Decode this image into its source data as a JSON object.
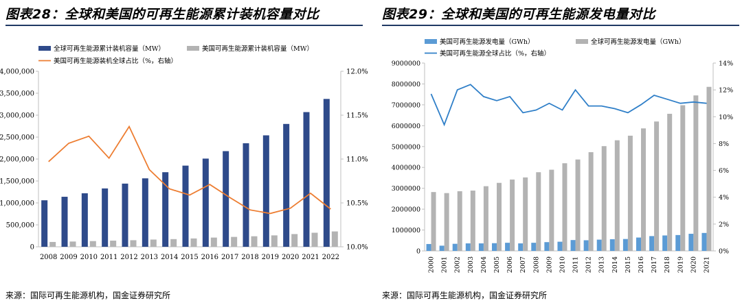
{
  "charts": [
    {
      "title": "图表28：全球和美国的可再生能源累计装机容量对比",
      "source": "来源：国际可再生能源机构，国金证券研究所"
    },
    {
      "title": "图表29：全球和美国的可再生能源发电量对比",
      "source": "来源：国际可再生能源机构，国金证券研究所"
    }
  ],
  "chart_data": [
    {
      "type": "bar",
      "categories": [
        "2008",
        "2009",
        "2010",
        "2011",
        "2012",
        "2013",
        "2014",
        "2015",
        "2016",
        "2017",
        "2018",
        "2019",
        "2020",
        "2021",
        "2022"
      ],
      "series": [
        {
          "name": "全球可再生能源累计装机容量（MW）",
          "type": "bar",
          "axis": "left",
          "color": "#2e4a8a",
          "values": [
            1060000,
            1140000,
            1220000,
            1330000,
            1440000,
            1560000,
            1700000,
            1850000,
            2010000,
            2180000,
            2360000,
            2540000,
            2800000,
            3070000,
            3370000
          ]
        },
        {
          "name": "美国可再生能源累计装机容量（MW）",
          "type": "bar",
          "axis": "left",
          "color": "#b3b3b3",
          "values": [
            110000,
            120000,
            130000,
            140000,
            150000,
            165000,
            175000,
            190000,
            210000,
            225000,
            240000,
            260000,
            290000,
            320000,
            350000
          ]
        },
        {
          "name": "美国可再生能源装机全球占比（%，右轴）",
          "type": "line",
          "axis": "right",
          "color": "#ed7d31",
          "values": [
            10.97,
            11.18,
            11.26,
            11.01,
            11.37,
            10.88,
            10.66,
            10.59,
            10.71,
            10.56,
            10.42,
            10.38,
            10.44,
            10.61,
            10.43
          ]
        }
      ],
      "y_left": {
        "min": 0,
        "max": 4000000,
        "step": 500000,
        "tick_labels": [
          "0",
          "500,000",
          "1,000,000",
          "1,500,000",
          "2,000,000",
          "2,500,000",
          "3,000,000",
          "3,500,000",
          "4,000,000"
        ]
      },
      "y_right": {
        "min": 10.0,
        "max": 12.0,
        "step": 0.5,
        "tick_labels": [
          "10.0%",
          "10.5%",
          "11.0%",
          "11.5%",
          "12.0%"
        ]
      },
      "legend_position": "top",
      "grid": false
    },
    {
      "type": "bar",
      "categories": [
        "2000",
        "2001",
        "2002",
        "2003",
        "2004",
        "2005",
        "2006",
        "2007",
        "2008",
        "2009",
        "2010",
        "2011",
        "2012",
        "2013",
        "2014",
        "2015",
        "2016",
        "2017",
        "2018",
        "2019",
        "2020",
        "2021"
      ],
      "series": [
        {
          "name": "美国可再生能源发电量（GWh）",
          "type": "bar",
          "axis": "left",
          "color": "#5b9bd5",
          "values": [
            330000,
            250000,
            340000,
            360000,
            360000,
            370000,
            390000,
            360000,
            390000,
            420000,
            440000,
            520000,
            510000,
            540000,
            560000,
            570000,
            640000,
            710000,
            740000,
            760000,
            820000,
            860000
          ]
        },
        {
          "name": "全球可再生能源发电量（GWh）",
          "type": "bar",
          "axis": "left",
          "color": "#b3b3b3",
          "values": [
            2820000,
            2770000,
            2860000,
            2890000,
            3100000,
            3260000,
            3420000,
            3520000,
            3770000,
            3890000,
            4200000,
            4380000,
            4730000,
            5020000,
            5300000,
            5520000,
            5870000,
            6200000,
            6570000,
            6980000,
            7450000,
            7860000
          ]
        },
        {
          "name": "美国可再生能源全球占比（%，右轴）",
          "type": "line",
          "axis": "right",
          "color": "#2f7fc8",
          "values": [
            11.7,
            9.4,
            12.0,
            12.4,
            11.5,
            11.2,
            11.5,
            10.3,
            10.5,
            11.0,
            10.5,
            12.0,
            10.8,
            10.8,
            10.6,
            10.3,
            10.9,
            11.6,
            11.3,
            11.0,
            11.1,
            11.0
          ]
        }
      ],
      "y_left": {
        "min": 0,
        "max": 9000000,
        "step": 1000000,
        "tick_labels": [
          "0",
          "1000000",
          "2000000",
          "3000000",
          "4000000",
          "5000000",
          "6000000",
          "7000000",
          "8000000",
          "9000000"
        ]
      },
      "y_right": {
        "min": 0,
        "max": 14,
        "step": 2,
        "tick_labels": [
          "0%",
          "2%",
          "4%",
          "6%",
          "8%",
          "10%",
          "12%",
          "14%"
        ]
      },
      "legend_position": "top",
      "grid": false
    }
  ]
}
